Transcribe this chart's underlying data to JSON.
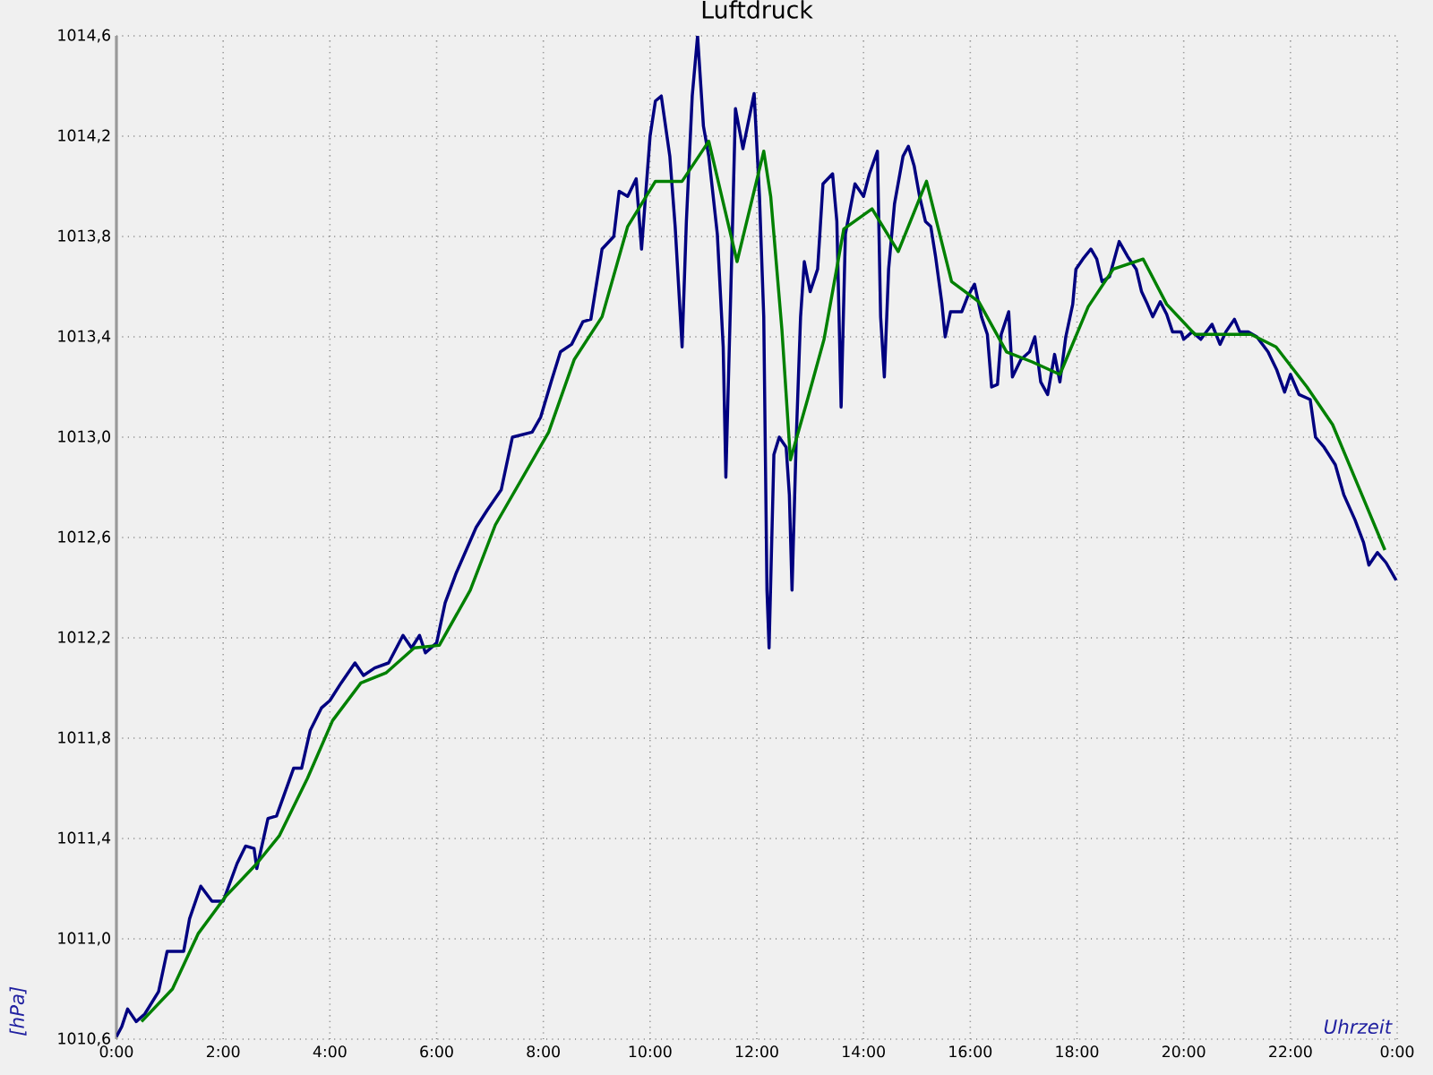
{
  "chart_data": {
    "type": "line",
    "title": "Luftdruck",
    "xlabel": "Uhrzeit",
    "ylabel": "[hPa]",
    "xlim": [
      0,
      24
    ],
    "ylim": [
      1010.6,
      1014.6
    ],
    "xticks": [
      {
        "value": 0,
        "label": "0:00"
      },
      {
        "value": 2,
        "label": "2:00"
      },
      {
        "value": 4,
        "label": "4:00"
      },
      {
        "value": 6,
        "label": "6:00"
      },
      {
        "value": 8,
        "label": "8:00"
      },
      {
        "value": 10,
        "label": "10:00"
      },
      {
        "value": 12,
        "label": "12:00"
      },
      {
        "value": 14,
        "label": "14:00"
      },
      {
        "value": 16,
        "label": "16:00"
      },
      {
        "value": 18,
        "label": "18:00"
      },
      {
        "value": 20,
        "label": "20:00"
      },
      {
        "value": 22,
        "label": "22:00"
      },
      {
        "value": 24,
        "label": "0:00"
      }
    ],
    "yticks": [
      {
        "value": 1010.6,
        "label": "1010,6"
      },
      {
        "value": 1011.0,
        "label": "1011,0"
      },
      {
        "value": 1011.4,
        "label": "1011,4"
      },
      {
        "value": 1011.8,
        "label": "1011,8"
      },
      {
        "value": 1012.2,
        "label": "1012,2"
      },
      {
        "value": 1012.6,
        "label": "1012,6"
      },
      {
        "value": 1013.0,
        "label": "1013,0"
      },
      {
        "value": 1013.4,
        "label": "1013,4"
      },
      {
        "value": 1013.8,
        "label": "1013,8"
      },
      {
        "value": 1014.2,
        "label": "1014,2"
      },
      {
        "value": 1014.6,
        "label": "1014,6"
      }
    ],
    "grid": true,
    "series": [
      {
        "color": "#000080",
        "x": [
          0,
          0.1,
          0.21,
          0.37,
          0.53,
          0.79,
          0.95,
          1.26,
          1.37,
          1.58,
          1.79,
          2.0,
          2.26,
          2.42,
          2.58,
          2.63,
          2.84,
          3.0,
          3.32,
          3.47,
          3.63,
          3.84,
          4.0,
          4.21,
          4.47,
          4.63,
          4.84,
          5.1,
          5.37,
          5.53,
          5.68,
          5.79,
          6.0,
          6.16,
          6.37,
          6.74,
          6.95,
          7.21,
          7.42,
          7.79,
          7.95,
          8.16,
          8.32,
          8.53,
          8.74,
          8.89,
          9.1,
          9.32,
          9.42,
          9.58,
          9.74,
          9.84,
          10.0,
          10.1,
          10.21,
          10.37,
          10.47,
          10.6,
          10.68,
          10.79,
          10.89,
          11.0,
          11.1,
          11.26,
          11.37,
          11.42,
          11.53,
          11.6,
          11.74,
          11.95,
          12.05,
          12.13,
          12.19,
          12.23,
          12.32,
          12.42,
          12.55,
          12.61,
          12.66,
          12.74,
          12.82,
          12.89,
          13.0,
          13.14,
          13.24,
          13.42,
          13.5,
          13.58,
          13.66,
          13.84,
          14.0,
          14.11,
          14.26,
          14.32,
          14.39,
          14.47,
          14.58,
          14.74,
          14.84,
          14.95,
          15.05,
          15.16,
          15.26,
          15.35,
          15.47,
          15.53,
          15.63,
          15.84,
          15.95,
          16.08,
          16.21,
          16.32,
          16.4,
          16.51,
          16.58,
          16.72,
          16.79,
          16.95,
          17.11,
          17.21,
          17.32,
          17.45,
          17.58,
          17.68,
          17.79,
          17.92,
          17.98,
          18.11,
          18.26,
          18.37,
          18.47,
          18.61,
          18.79,
          18.95,
          19.11,
          19.21,
          19.32,
          19.42,
          19.56,
          19.68,
          19.79,
          19.95,
          20.0,
          20.16,
          20.32,
          20.53,
          20.68,
          20.79,
          20.95,
          21.05,
          21.21,
          21.37,
          21.58,
          21.74,
          21.89,
          22.0,
          22.16,
          22.37,
          22.47,
          22.63,
          22.84,
          23.0,
          23.21,
          23.37,
          23.47,
          23.63,
          23.79,
          23.98
        ],
        "values": [
          1010.61,
          1010.65,
          1010.72,
          1010.67,
          1010.7,
          1010.79,
          1010.95,
          1010.95,
          1011.08,
          1011.21,
          1011.15,
          1011.15,
          1011.3,
          1011.37,
          1011.36,
          1011.28,
          1011.48,
          1011.49,
          1011.68,
          1011.68,
          1011.83,
          1011.92,
          1011.95,
          1012.02,
          1012.1,
          1012.05,
          1012.08,
          1012.1,
          1012.21,
          1012.16,
          1012.21,
          1012.14,
          1012.18,
          1012.34,
          1012.46,
          1012.64,
          1012.71,
          1012.79,
          1013.0,
          1013.02,
          1013.08,
          1013.23,
          1013.34,
          1013.37,
          1013.46,
          1013.47,
          1013.75,
          1013.8,
          1013.98,
          1013.96,
          1014.03,
          1013.75,
          1014.2,
          1014.34,
          1014.36,
          1014.12,
          1013.84,
          1013.36,
          1013.86,
          1014.36,
          1014.6,
          1014.24,
          1014.12,
          1013.81,
          1013.36,
          1012.84,
          1013.72,
          1014.31,
          1014.15,
          1014.37,
          1013.96,
          1013.48,
          1012.39,
          1012.16,
          1012.93,
          1013.0,
          1012.96,
          1012.77,
          1012.39,
          1013.0,
          1013.48,
          1013.7,
          1013.58,
          1013.67,
          1014.01,
          1014.05,
          1013.86,
          1013.12,
          1013.81,
          1014.01,
          1013.96,
          1014.05,
          1014.14,
          1013.48,
          1013.24,
          1013.67,
          1013.93,
          1014.12,
          1014.16,
          1014.08,
          1013.96,
          1013.86,
          1013.84,
          1013.72,
          1013.53,
          1013.4,
          1013.5,
          1013.5,
          1013.56,
          1013.61,
          1013.48,
          1013.41,
          1013.2,
          1013.21,
          1013.41,
          1013.5,
          1013.24,
          1013.31,
          1013.34,
          1013.4,
          1013.22,
          1013.17,
          1013.33,
          1013.22,
          1013.4,
          1013.53,
          1013.67,
          1013.71,
          1013.75,
          1013.71,
          1013.62,
          1013.64,
          1013.78,
          1013.72,
          1013.67,
          1013.58,
          1013.53,
          1013.48,
          1013.54,
          1013.49,
          1013.42,
          1013.42,
          1013.39,
          1013.42,
          1013.39,
          1013.45,
          1013.37,
          1013.42,
          1013.47,
          1013.42,
          1013.42,
          1013.4,
          1013.34,
          1013.27,
          1013.18,
          1013.25,
          1013.17,
          1013.15,
          1013.0,
          1012.96,
          1012.89,
          1012.77,
          1012.67,
          1012.58,
          1012.49,
          1012.54,
          1012.5,
          1012.43
        ]
      },
      {
        "color": "#008000",
        "x": [
          0.47,
          1.05,
          1.53,
          2.05,
          2.63,
          3.05,
          3.58,
          4.05,
          4.58,
          5.05,
          5.58,
          6.05,
          6.63,
          7.1,
          8.1,
          8.58,
          9.1,
          9.58,
          10.1,
          10.6,
          11.1,
          11.63,
          12.13,
          12.26,
          12.47,
          12.63,
          12.95,
          13.26,
          13.63,
          14.16,
          14.65,
          15.18,
          15.65,
          16.16,
          16.68,
          17.16,
          17.68,
          18.21,
          18.68,
          19.24,
          19.68,
          20.21,
          20.73,
          21.26,
          21.73,
          22.31,
          22.79,
          23.26,
          23.77
        ],
        "values": [
          1010.67,
          1010.8,
          1011.02,
          1011.17,
          1011.3,
          1011.41,
          1011.64,
          1011.87,
          1012.02,
          1012.06,
          1012.16,
          1012.17,
          1012.39,
          1012.65,
          1013.02,
          1013.31,
          1013.48,
          1013.84,
          1014.02,
          1014.02,
          1014.18,
          1013.7,
          1014.14,
          1013.96,
          1013.43,
          1012.91,
          1013.15,
          1013.39,
          1013.83,
          1013.91,
          1013.74,
          1014.02,
          1013.62,
          1013.54,
          1013.34,
          1013.3,
          1013.25,
          1013.52,
          1013.67,
          1013.71,
          1013.53,
          1013.41,
          1013.41,
          1013.41,
          1013.36,
          1013.2,
          1013.05,
          1012.81,
          1012.55
        ]
      }
    ]
  }
}
